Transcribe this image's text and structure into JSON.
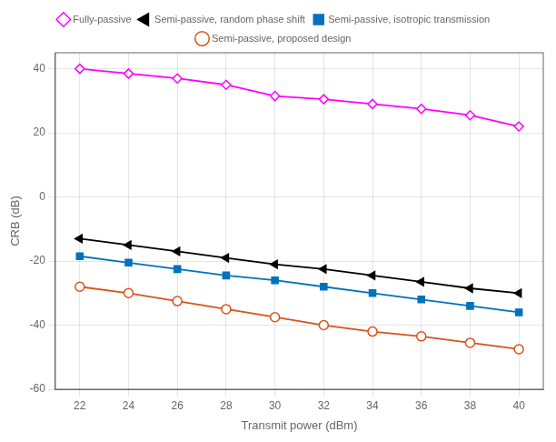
{
  "chart_data": {
    "type": "line",
    "x": [
      22,
      24,
      26,
      28,
      30,
      32,
      34,
      36,
      38,
      40
    ],
    "series": [
      {
        "name": "Fully-passive",
        "color": "#FF00FF",
        "marker": "diamond",
        "values": [
          40.0,
          38.5,
          37.0,
          35.0,
          31.5,
          30.5,
          29.0,
          27.5,
          25.5,
          22.0
        ]
      },
      {
        "name": "Semi-passive, random phase shift",
        "color": "#000000",
        "marker": "triangle-left",
        "values": [
          -13.0,
          -15.0,
          -17.0,
          -19.0,
          -21.0,
          -22.5,
          -24.5,
          -26.5,
          -28.5,
          -30.0
        ]
      },
      {
        "name": "Semi-passive, isotropic transmission",
        "color": "#0072BD",
        "marker": "square",
        "values": [
          -18.5,
          -20.5,
          -22.5,
          -24.5,
          -26.0,
          -28.0,
          -30.0,
          -32.0,
          -34.0,
          -36.0
        ]
      },
      {
        "name": "Semi-passive, proposed design",
        "color": "#D95319",
        "marker": "circle",
        "values": [
          -28.0,
          -30.0,
          -32.5,
          -35.0,
          -37.5,
          -40.0,
          -42.0,
          -43.5,
          -45.5,
          -47.5
        ]
      }
    ],
    "xlabel": "Transmit power (dBm)",
    "ylabel": "CRB (dB)",
    "xlim": [
      21,
      41
    ],
    "ylim": [
      -60,
      45
    ],
    "xticks": [
      22,
      24,
      26,
      28,
      30,
      32,
      34,
      36,
      38,
      40
    ],
    "yticks": [
      -60,
      -40,
      -20,
      0,
      20,
      40
    ],
    "grid": true,
    "legend": "top"
  }
}
